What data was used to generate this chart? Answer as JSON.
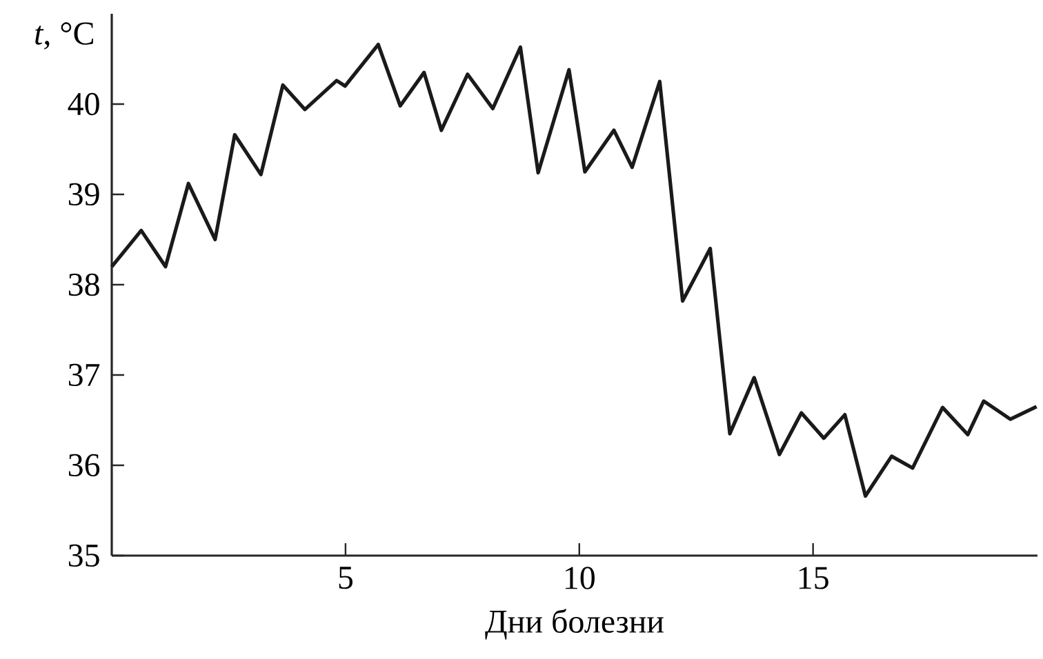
{
  "chart_data": {
    "type": "line",
    "xlabel": "Дни болезни",
    "ylabel": "*t*, °C",
    "xlim": [
      0,
      19.8
    ],
    "ylim": [
      35,
      41
    ],
    "xticks": [
      5,
      10,
      15
    ],
    "yticks": [
      35,
      36,
      37,
      38,
      39,
      40
    ],
    "grid": false,
    "marker": "none",
    "line_style": "solid",
    "series": [
      {
        "color": "#1a1a1a",
        "x": [
          0,
          0.63,
          1.15,
          1.64,
          2.21,
          2.63,
          3.19,
          3.66,
          4.13,
          4.81,
          4.99,
          5.7,
          6.17,
          6.68,
          7.05,
          7.61,
          8.15,
          8.74,
          9.12,
          9.78,
          10.12,
          10.74,
          11.13,
          11.72,
          12.21,
          12.8,
          13.22,
          13.74,
          14.28,
          14.75,
          15.23,
          15.68,
          16.12,
          16.68,
          17.13,
          17.77,
          18.31,
          18.65,
          19.22,
          19.78
        ],
        "values": [
          38.2,
          38.6,
          38.2,
          39.12,
          38.5,
          39.66,
          39.22,
          40.21,
          39.94,
          40.26,
          40.2,
          40.66,
          39.98,
          40.35,
          39.71,
          40.33,
          39.95,
          40.63,
          39.24,
          40.38,
          39.25,
          39.71,
          39.3,
          40.25,
          37.82,
          38.4,
          36.35,
          36.97,
          36.12,
          36.58,
          36.3,
          36.56,
          35.66,
          36.1,
          35.97,
          36.64,
          36.34,
          36.71,
          36.51,
          36.65
        ]
      }
    ]
  }
}
